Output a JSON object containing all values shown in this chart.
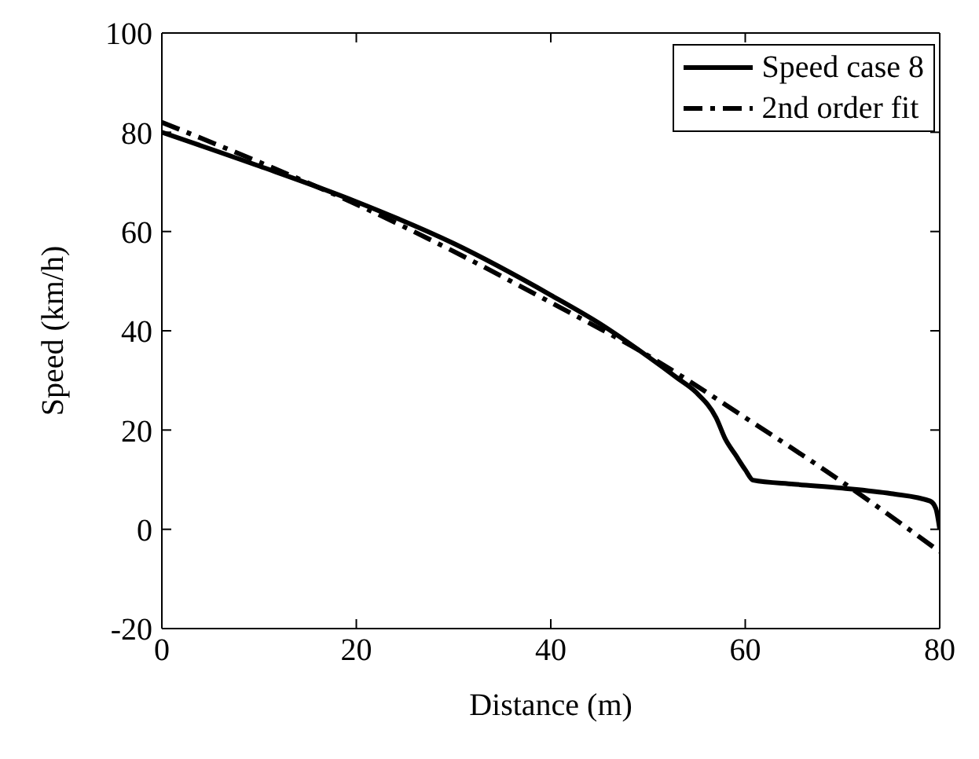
{
  "chart_data": {
    "type": "line",
    "xlabel": "Distance (m)",
    "ylabel": "Speed (km/h)",
    "xlim": [
      0,
      80
    ],
    "xticks": [
      0,
      20,
      40,
      60,
      80
    ],
    "ylim": [
      -20,
      100
    ],
    "yticks": [
      -20,
      0,
      20,
      40,
      60,
      80,
      100
    ],
    "legend": "top right",
    "marker": "none",
    "series": [
      {
        "name": "Speed case 8",
        "color": "#000000",
        "line_style": "solid",
        "x": [
          0,
          10,
          20,
          30,
          40,
          45,
          50,
          53,
          55,
          57,
          58,
          59,
          60,
          60.8,
          65,
          70,
          75,
          79,
          79.6,
          80
        ],
        "values": [
          80,
          73.2,
          66,
          57.6,
          47.2,
          41.5,
          34.8,
          30.5,
          27.5,
          22.5,
          18,
          15,
          12,
          9.9,
          9.1,
          8.3,
          7.2,
          5.7,
          4.2,
          0
        ]
      },
      {
        "name": "2nd order fit",
        "color": "#000000",
        "line_style": "dashdot",
        "x": [
          0,
          10,
          20,
          30,
          40,
          50,
          60,
          70,
          80
        ],
        "values": [
          82,
          74,
          65.5,
          56,
          45.7,
          35,
          22.5,
          9.5,
          -4.5
        ]
      }
    ]
  }
}
